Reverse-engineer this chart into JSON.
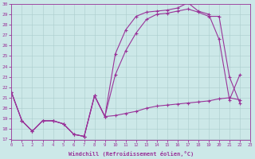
{
  "xlabel": "Windchill (Refroidissement éolien,°C)",
  "background_color": "#cce8e8",
  "line_color": "#993399",
  "xlim": [
    0,
    23
  ],
  "ylim": [
    17,
    30
  ],
  "xticks": [
    0,
    1,
    2,
    3,
    4,
    5,
    6,
    7,
    8,
    9,
    10,
    11,
    12,
    13,
    14,
    15,
    16,
    17,
    18,
    19,
    20,
    21,
    22,
    23
  ],
  "yticks": [
    17,
    18,
    19,
    20,
    21,
    22,
    23,
    24,
    25,
    26,
    27,
    28,
    29,
    30
  ],
  "line1_x": [
    0,
    1,
    2,
    3,
    4,
    5,
    6,
    7,
    8,
    9,
    10,
    11,
    12,
    13,
    14,
    15,
    16,
    17,
    18,
    19,
    20,
    21,
    22
  ],
  "line1_y": [
    21.5,
    18.8,
    17.8,
    18.8,
    18.8,
    18.5,
    17.5,
    17.3,
    21.2,
    19.2,
    25.2,
    27.5,
    28.8,
    29.2,
    29.3,
    29.4,
    29.6,
    30.1,
    29.3,
    29.0,
    26.6,
    20.8,
    23.2
  ],
  "line2_x": [
    0,
    1,
    2,
    3,
    4,
    5,
    6,
    7,
    8,
    9,
    10,
    11,
    12,
    13,
    14,
    15,
    16,
    17,
    18,
    19,
    20,
    21,
    22
  ],
  "line2_y": [
    21.5,
    18.8,
    17.8,
    18.8,
    18.8,
    18.5,
    17.5,
    17.3,
    21.2,
    19.2,
    23.2,
    25.5,
    27.2,
    28.5,
    29.0,
    29.1,
    29.3,
    29.5,
    29.2,
    28.8,
    28.8,
    23.0,
    20.5
  ],
  "line3_x": [
    0,
    1,
    2,
    3,
    4,
    5,
    6,
    7,
    8,
    9,
    10,
    11,
    12,
    13,
    14,
    15,
    16,
    17,
    18,
    19,
    20,
    21,
    22
  ],
  "line3_y": [
    21.5,
    18.8,
    17.8,
    18.8,
    18.8,
    18.5,
    17.5,
    17.3,
    21.2,
    19.2,
    19.3,
    19.5,
    19.7,
    20.0,
    20.2,
    20.3,
    20.4,
    20.5,
    20.6,
    20.7,
    20.9,
    21.0,
    20.8
  ]
}
